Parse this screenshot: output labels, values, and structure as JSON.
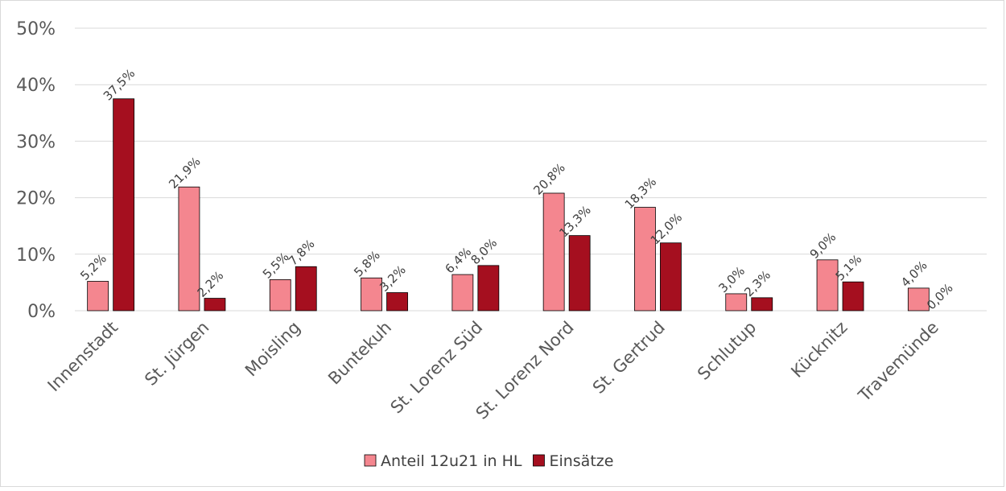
{
  "chart_data": {
    "type": "bar",
    "title": "",
    "xlabel": "",
    "ylabel": "",
    "categories": [
      "Innenstadt",
      "St. Jürgen",
      "Moisling",
      "Buntekuh",
      "St. Lorenz Süd",
      "St. Lorenz Nord",
      "St. Gertrud",
      "Schlutup",
      "Kücknitz",
      "Travemünde"
    ],
    "series": [
      {
        "name": "Anteil 12u21 in HL",
        "color": "#f4868f",
        "values": [
          5.2,
          21.9,
          5.5,
          5.8,
          6.4,
          20.8,
          18.3,
          3.0,
          9.0,
          4.0
        ],
        "labels": [
          "5,2%",
          "21,9%",
          "5,5%",
          "5,8%",
          "6,4%",
          "20,8%",
          "18,3%",
          "3,0%",
          "9,0%",
          "4,0%"
        ]
      },
      {
        "name": "Einsätze",
        "color": "#a50f1f",
        "values": [
          37.5,
          2.2,
          7.8,
          3.2,
          8.0,
          13.3,
          12.0,
          2.3,
          5.1,
          0.0
        ],
        "labels": [
          "37,5%",
          "2,2%",
          "7,8%",
          "3,2%",
          "8,0%",
          "13,3%",
          "12,0%",
          "2,3%",
          "5,1%",
          "0,0%"
        ]
      }
    ],
    "ylim": [
      0,
      50
    ],
    "yticks": [
      0,
      10,
      20,
      30,
      40,
      50
    ],
    "ytick_labels": [
      "0%",
      "10%",
      "20%",
      "30%",
      "40%",
      "50%"
    ],
    "grid": true,
    "legend": "bottom-center"
  }
}
